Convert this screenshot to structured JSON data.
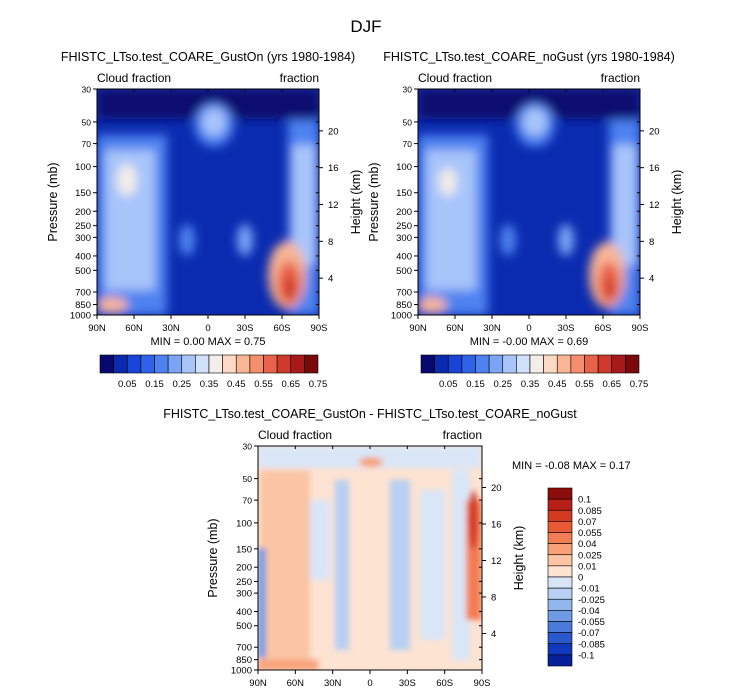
{
  "figure_title": "DJF",
  "chart_data": [
    {
      "type": "heatmap",
      "title": "FHISTC_LTso.test_COARE_GustOn (yrs 1980-1984)",
      "left_string": "Cloud fraction",
      "right_string": "fraction",
      "ylabel": "Pressure (mb)",
      "ylabel_right": "Height (km)",
      "x_ticks": [
        "90N",
        "60N",
        "30N",
        "0",
        "30S",
        "60S",
        "90S"
      ],
      "x_tick_values": [
        90,
        60,
        30,
        0,
        -30,
        -60,
        -90
      ],
      "y_ticks": [
        "30",
        "50",
        "70",
        "100",
        "150",
        "200",
        "250",
        "300",
        "400",
        "500",
        "700",
        "850",
        "1000"
      ],
      "y_tick_values": [
        30,
        50,
        70,
        100,
        150,
        200,
        250,
        300,
        400,
        500,
        700,
        850,
        1000
      ],
      "height_ticks": [
        "20",
        "16",
        "12",
        "8",
        "4"
      ],
      "height_tick_values": [
        20,
        16,
        12,
        8,
        4
      ],
      "min_max_text": "MIN =   0.00   MAX =   0.75",
      "min": 0.0,
      "max": 0.75,
      "colorbar_levels": [
        "0.05",
        "0.15",
        "0.25",
        "0.35",
        "0.45",
        "0.55",
        "0.65",
        "0.75"
      ],
      "colorbar_colors": [
        "#08086e",
        "#0a2bb0",
        "#1845d8",
        "#2f62e8",
        "#4e82f0",
        "#7aa4f6",
        "#a8c5fa",
        "#d0e1fc",
        "#f3eee8",
        "#fcd9c4",
        "#f9b594",
        "#f48e6c",
        "#e8624a",
        "#cf3a2c",
        "#a81a1a",
        "#7a0909"
      ]
    },
    {
      "type": "heatmap",
      "title": "FHISTC_LTso.test_COARE_noGust (yrs 1980-1984)",
      "left_string": "Cloud fraction",
      "right_string": "fraction",
      "ylabel": "Pressure (mb)",
      "ylabel_right": "Height (km)",
      "x_ticks": [
        "90N",
        "60N",
        "30N",
        "0",
        "30S",
        "60S",
        "90S"
      ],
      "x_tick_values": [
        90,
        60,
        30,
        0,
        -30,
        -60,
        -90
      ],
      "y_ticks": [
        "30",
        "50",
        "70",
        "100",
        "150",
        "200",
        "250",
        "300",
        "400",
        "500",
        "700",
        "850",
        "1000"
      ],
      "y_tick_values": [
        30,
        50,
        70,
        100,
        150,
        200,
        250,
        300,
        400,
        500,
        700,
        850,
        1000
      ],
      "height_ticks": [
        "20",
        "16",
        "12",
        "8",
        "4"
      ],
      "height_tick_values": [
        20,
        16,
        12,
        8,
        4
      ],
      "min_max_text": "MIN =  -0.00   MAX =   0.69",
      "min": -0.0,
      "max": 0.69,
      "colorbar_levels": [
        "0.05",
        "0.15",
        "0.25",
        "0.35",
        "0.45",
        "0.55",
        "0.65",
        "0.75"
      ],
      "colorbar_colors": [
        "#08086e",
        "#0a2bb0",
        "#1845d8",
        "#2f62e8",
        "#4e82f0",
        "#7aa4f6",
        "#a8c5fa",
        "#d0e1fc",
        "#f3eee8",
        "#fcd9c4",
        "#f9b594",
        "#f48e6c",
        "#e8624a",
        "#cf3a2c",
        "#a81a1a",
        "#7a0909"
      ]
    },
    {
      "type": "heatmap",
      "title": "FHISTC_LTso.test_COARE_GustOn - FHISTC_LTso.test_COARE_noGust",
      "left_string": "Cloud fraction",
      "right_string": "fraction",
      "ylabel": "Pressure (mb)",
      "ylabel_right": "Height (km)",
      "x_ticks": [
        "90N",
        "60N",
        "30N",
        "0",
        "30S",
        "60S",
        "90S"
      ],
      "x_tick_values": [
        90,
        60,
        30,
        0,
        -30,
        -60,
        -90
      ],
      "y_ticks": [
        "30",
        "50",
        "70",
        "100",
        "150",
        "200",
        "250",
        "300",
        "400",
        "500",
        "700",
        "850",
        "1000"
      ],
      "y_tick_values": [
        30,
        50,
        70,
        100,
        150,
        200,
        250,
        300,
        400,
        500,
        700,
        850,
        1000
      ],
      "height_ticks": [
        "20",
        "16",
        "12",
        "8",
        "4"
      ],
      "height_tick_values": [
        20,
        16,
        12,
        8,
        4
      ],
      "min_max_text": "MIN =  -0.08   MAX =   0.17",
      "min": -0.08,
      "max": 0.17,
      "colorbar_levels": [
        "0.1",
        "0.085",
        "0.07",
        "0.055",
        "0.04",
        "0.025",
        "0.01",
        "0",
        "-0.01",
        "-0.025",
        "-0.04",
        "-0.055",
        "-0.07",
        "-0.085",
        "-0.1"
      ],
      "colorbar_colors": [
        "#8c0c0c",
        "#b81f16",
        "#d33a22",
        "#e85a34",
        "#f37d52",
        "#f8a077",
        "#fbc4a3",
        "#fde3d2",
        "#d9e6f7",
        "#b7cff2",
        "#93b6ec",
        "#6f9ae4",
        "#4a7bdb",
        "#2a59cf",
        "#1238bd",
        "#06209a"
      ]
    }
  ]
}
